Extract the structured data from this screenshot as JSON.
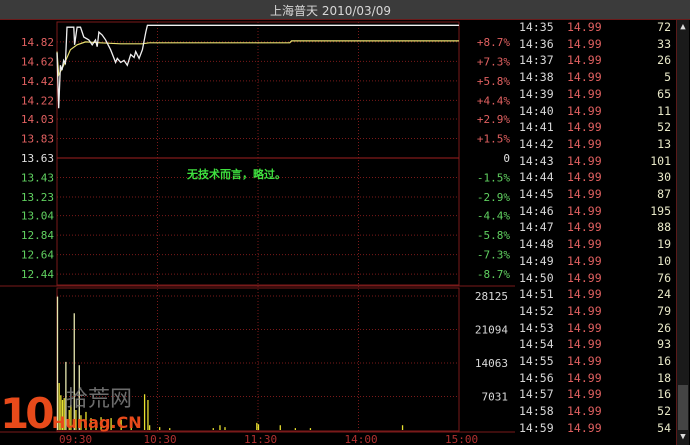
{
  "header": {
    "title": "上海普天 2010/03/09"
  },
  "annotation": "无技术而言，略过。",
  "watermark": {
    "number": "10",
    "name": "拾荒网",
    "site": "Hunag.CN"
  },
  "colors": {
    "price_line": "#f0f0f0",
    "avg_line": "#e8e070",
    "volume": "#e8e030",
    "up": "#e06060",
    "down": "#60d060",
    "grid": "#7a1a1a"
  },
  "chart_data": {
    "type": "line",
    "price_axis": {
      "ticks": [
        14.82,
        14.62,
        14.42,
        14.22,
        14.03,
        13.83,
        13.63,
        13.43,
        13.23,
        13.04,
        12.84,
        12.64,
        12.44
      ],
      "labels": [
        "14.82",
        "14.62",
        "14.42",
        "14.22",
        "14.03",
        "13.83",
        "13.63",
        "13.43",
        "13.23",
        "13.04",
        "12.84",
        "12.64",
        "12.44"
      ],
      "pct_labels": [
        "+8.7%",
        "+7.3%",
        "+5.8%",
        "+4.4%",
        "+2.9%",
        "+1.5%",
        "0",
        "-1.5%",
        "-2.9%",
        "-4.4%",
        "-5.8%",
        "-7.3%",
        "-8.7%"
      ],
      "prev_close": 13.63
    },
    "volume_axis": {
      "ticks": [
        28125,
        21094,
        14063,
        7031
      ],
      "labels": [
        "28125",
        "21094",
        "14063",
        "7031"
      ],
      "max": 28125
    },
    "time_axis": {
      "minutes": [
        0,
        60,
        120,
        180,
        240
      ],
      "labels": [
        "09:30",
        "10:30",
        "11:30",
        "14:00",
        "15:00"
      ]
    },
    "grid": true,
    "price_series": [
      [
        0,
        14.71
      ],
      [
        1,
        14.14
      ],
      [
        2,
        14.58
      ],
      [
        3,
        14.53
      ],
      [
        4,
        14.63
      ],
      [
        5,
        14.6
      ],
      [
        6,
        14.97
      ],
      [
        10,
        14.97
      ],
      [
        10.5,
        14.79
      ],
      [
        12,
        14.97
      ],
      [
        14,
        14.97
      ],
      [
        16,
        14.87
      ],
      [
        19,
        14.84
      ],
      [
        21,
        14.79
      ],
      [
        23,
        14.84
      ],
      [
        24,
        14.77
      ],
      [
        25,
        14.92
      ],
      [
        27,
        14.89
      ],
      [
        29,
        14.84
      ],
      [
        32,
        14.74
      ],
      [
        35,
        14.61
      ],
      [
        36,
        14.65
      ],
      [
        38,
        14.61
      ],
      [
        40,
        14.63
      ],
      [
        42,
        14.58
      ],
      [
        44,
        14.69
      ],
      [
        46,
        14.66
      ],
      [
        47,
        14.72
      ],
      [
        49,
        14.65
      ],
      [
        51,
        14.74
      ],
      [
        53,
        14.92
      ],
      [
        54,
        14.99
      ],
      [
        240,
        14.99
      ]
    ],
    "avg_series": [
      [
        0,
        14.72
      ],
      [
        1,
        14.48
      ],
      [
        4,
        14.58
      ],
      [
        8,
        14.74
      ],
      [
        12,
        14.79
      ],
      [
        17,
        14.82
      ],
      [
        26,
        14.81
      ],
      [
        38,
        14.8
      ],
      [
        51,
        14.8
      ],
      [
        55,
        14.81
      ],
      [
        139,
        14.81
      ],
      [
        140,
        14.83
      ],
      [
        240,
        14.83
      ]
    ],
    "volume_series": [
      [
        0,
        28000
      ],
      [
        1,
        9860
      ],
      [
        2,
        7300
      ],
      [
        3,
        6300
      ],
      [
        4,
        6700
      ],
      [
        5,
        14300
      ],
      [
        7,
        4200
      ],
      [
        8,
        5200
      ],
      [
        10,
        24500
      ],
      [
        11,
        4200
      ],
      [
        13,
        13600
      ],
      [
        14,
        3100
      ],
      [
        17,
        3800
      ],
      [
        20,
        2500
      ],
      [
        23,
        2100
      ],
      [
        26,
        2700
      ],
      [
        32,
        2500
      ],
      [
        38,
        2100
      ],
      [
        44,
        1700
      ],
      [
        52,
        7500
      ],
      [
        54,
        6300
      ],
      [
        55,
        1000
      ],
      [
        61,
        600
      ],
      [
        67,
        400
      ],
      [
        93,
        400
      ],
      [
        97,
        1000
      ],
      [
        100,
        600
      ],
      [
        119,
        1500
      ],
      [
        120,
        1200
      ],
      [
        133,
        1000
      ],
      [
        142,
        400
      ],
      [
        151,
        400
      ],
      [
        206,
        1000
      ]
    ]
  },
  "tape": [
    {
      "time": "14:35",
      "price": "14.99",
      "vol": "72"
    },
    {
      "time": "14:36",
      "price": "14.99",
      "vol": "33"
    },
    {
      "time": "14:37",
      "price": "14.99",
      "vol": "26"
    },
    {
      "time": "14:38",
      "price": "14.99",
      "vol": "5"
    },
    {
      "time": "14:39",
      "price": "14.99",
      "vol": "65"
    },
    {
      "time": "14:40",
      "price": "14.99",
      "vol": "11"
    },
    {
      "time": "14:41",
      "price": "14.99",
      "vol": "52"
    },
    {
      "time": "14:42",
      "price": "14.99",
      "vol": "13"
    },
    {
      "time": "14:43",
      "price": "14.99",
      "vol": "101"
    },
    {
      "time": "14:44",
      "price": "14.99",
      "vol": "30"
    },
    {
      "time": "14:45",
      "price": "14.99",
      "vol": "87"
    },
    {
      "time": "14:46",
      "price": "14.99",
      "vol": "195"
    },
    {
      "time": "14:47",
      "price": "14.99",
      "vol": "88"
    },
    {
      "time": "14:48",
      "price": "14.99",
      "vol": "19"
    },
    {
      "time": "14:49",
      "price": "14.99",
      "vol": "10"
    },
    {
      "time": "14:50",
      "price": "14.99",
      "vol": "76"
    },
    {
      "time": "14:51",
      "price": "14.99",
      "vol": "24"
    },
    {
      "time": "14:52",
      "price": "14.99",
      "vol": "79"
    },
    {
      "time": "14:53",
      "price": "14.99",
      "vol": "26"
    },
    {
      "time": "14:54",
      "price": "14.99",
      "vol": "93"
    },
    {
      "time": "14:55",
      "price": "14.99",
      "vol": "16"
    },
    {
      "time": "14:56",
      "price": "14.99",
      "vol": "18"
    },
    {
      "time": "14:57",
      "price": "14.99",
      "vol": "16"
    },
    {
      "time": "14:58",
      "price": "14.99",
      "vol": "52"
    },
    {
      "time": "14:59",
      "price": "14.99",
      "vol": "54"
    }
  ],
  "scrollbar": {
    "up_icon": "triangle-up",
    "down_icon": "triangle-down"
  }
}
